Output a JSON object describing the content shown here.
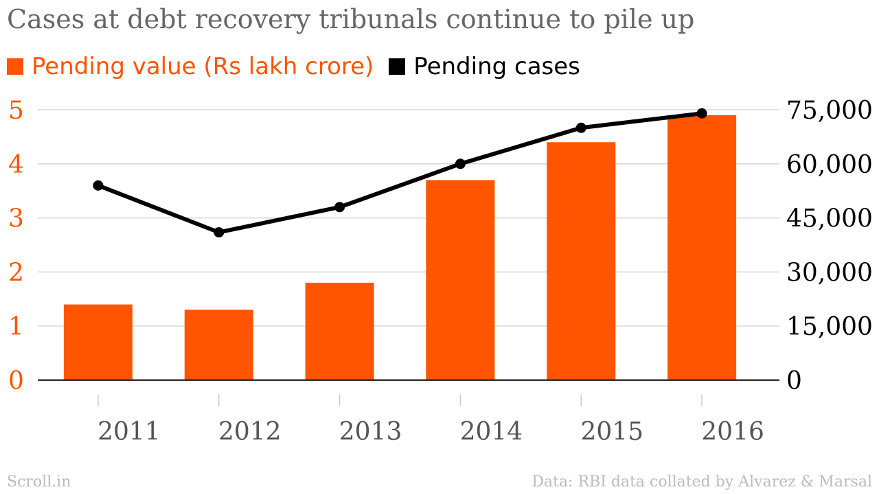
{
  "title": "Cases at debt recovery tribunals continue to pile up",
  "legend": [
    {
      "label": "Pending value (Rs lakh crore)",
      "color": "#ff5500",
      "text_color": "#ff5500"
    },
    {
      "label": "Pending cases",
      "color": "#000000",
      "text_color": "#000000"
    }
  ],
  "footer": {
    "source_left": "Scroll.in",
    "source_right": "Data: RBI data collated by Alvarez & Marsal"
  },
  "chart_data": {
    "type": "bar",
    "categories": [
      "2011",
      "2012",
      "2013",
      "2014",
      "2015",
      "2016"
    ],
    "series": [
      {
        "name": "Pending value (Rs lakh crore)",
        "type": "bar",
        "axis": "left",
        "color": "#ff5500",
        "values": [
          1.4,
          1.3,
          1.8,
          3.7,
          4.4,
          4.9
        ]
      },
      {
        "name": "Pending cases",
        "type": "line",
        "axis": "right",
        "color": "#000000",
        "values": [
          54000,
          41000,
          48000,
          60000,
          70000,
          74000
        ]
      }
    ],
    "y_left": {
      "ylim": [
        0,
        5
      ],
      "ticks": [
        "0",
        "1",
        "2",
        "3",
        "4",
        "5"
      ],
      "color": "#ff5500"
    },
    "y_right": {
      "ylim": [
        0,
        75000
      ],
      "ticks": [
        "0",
        "15,000",
        "30,000",
        "45,000",
        "60,000",
        "75,000"
      ],
      "color": "#000000"
    },
    "grid": true,
    "legend_position": "top-left"
  }
}
